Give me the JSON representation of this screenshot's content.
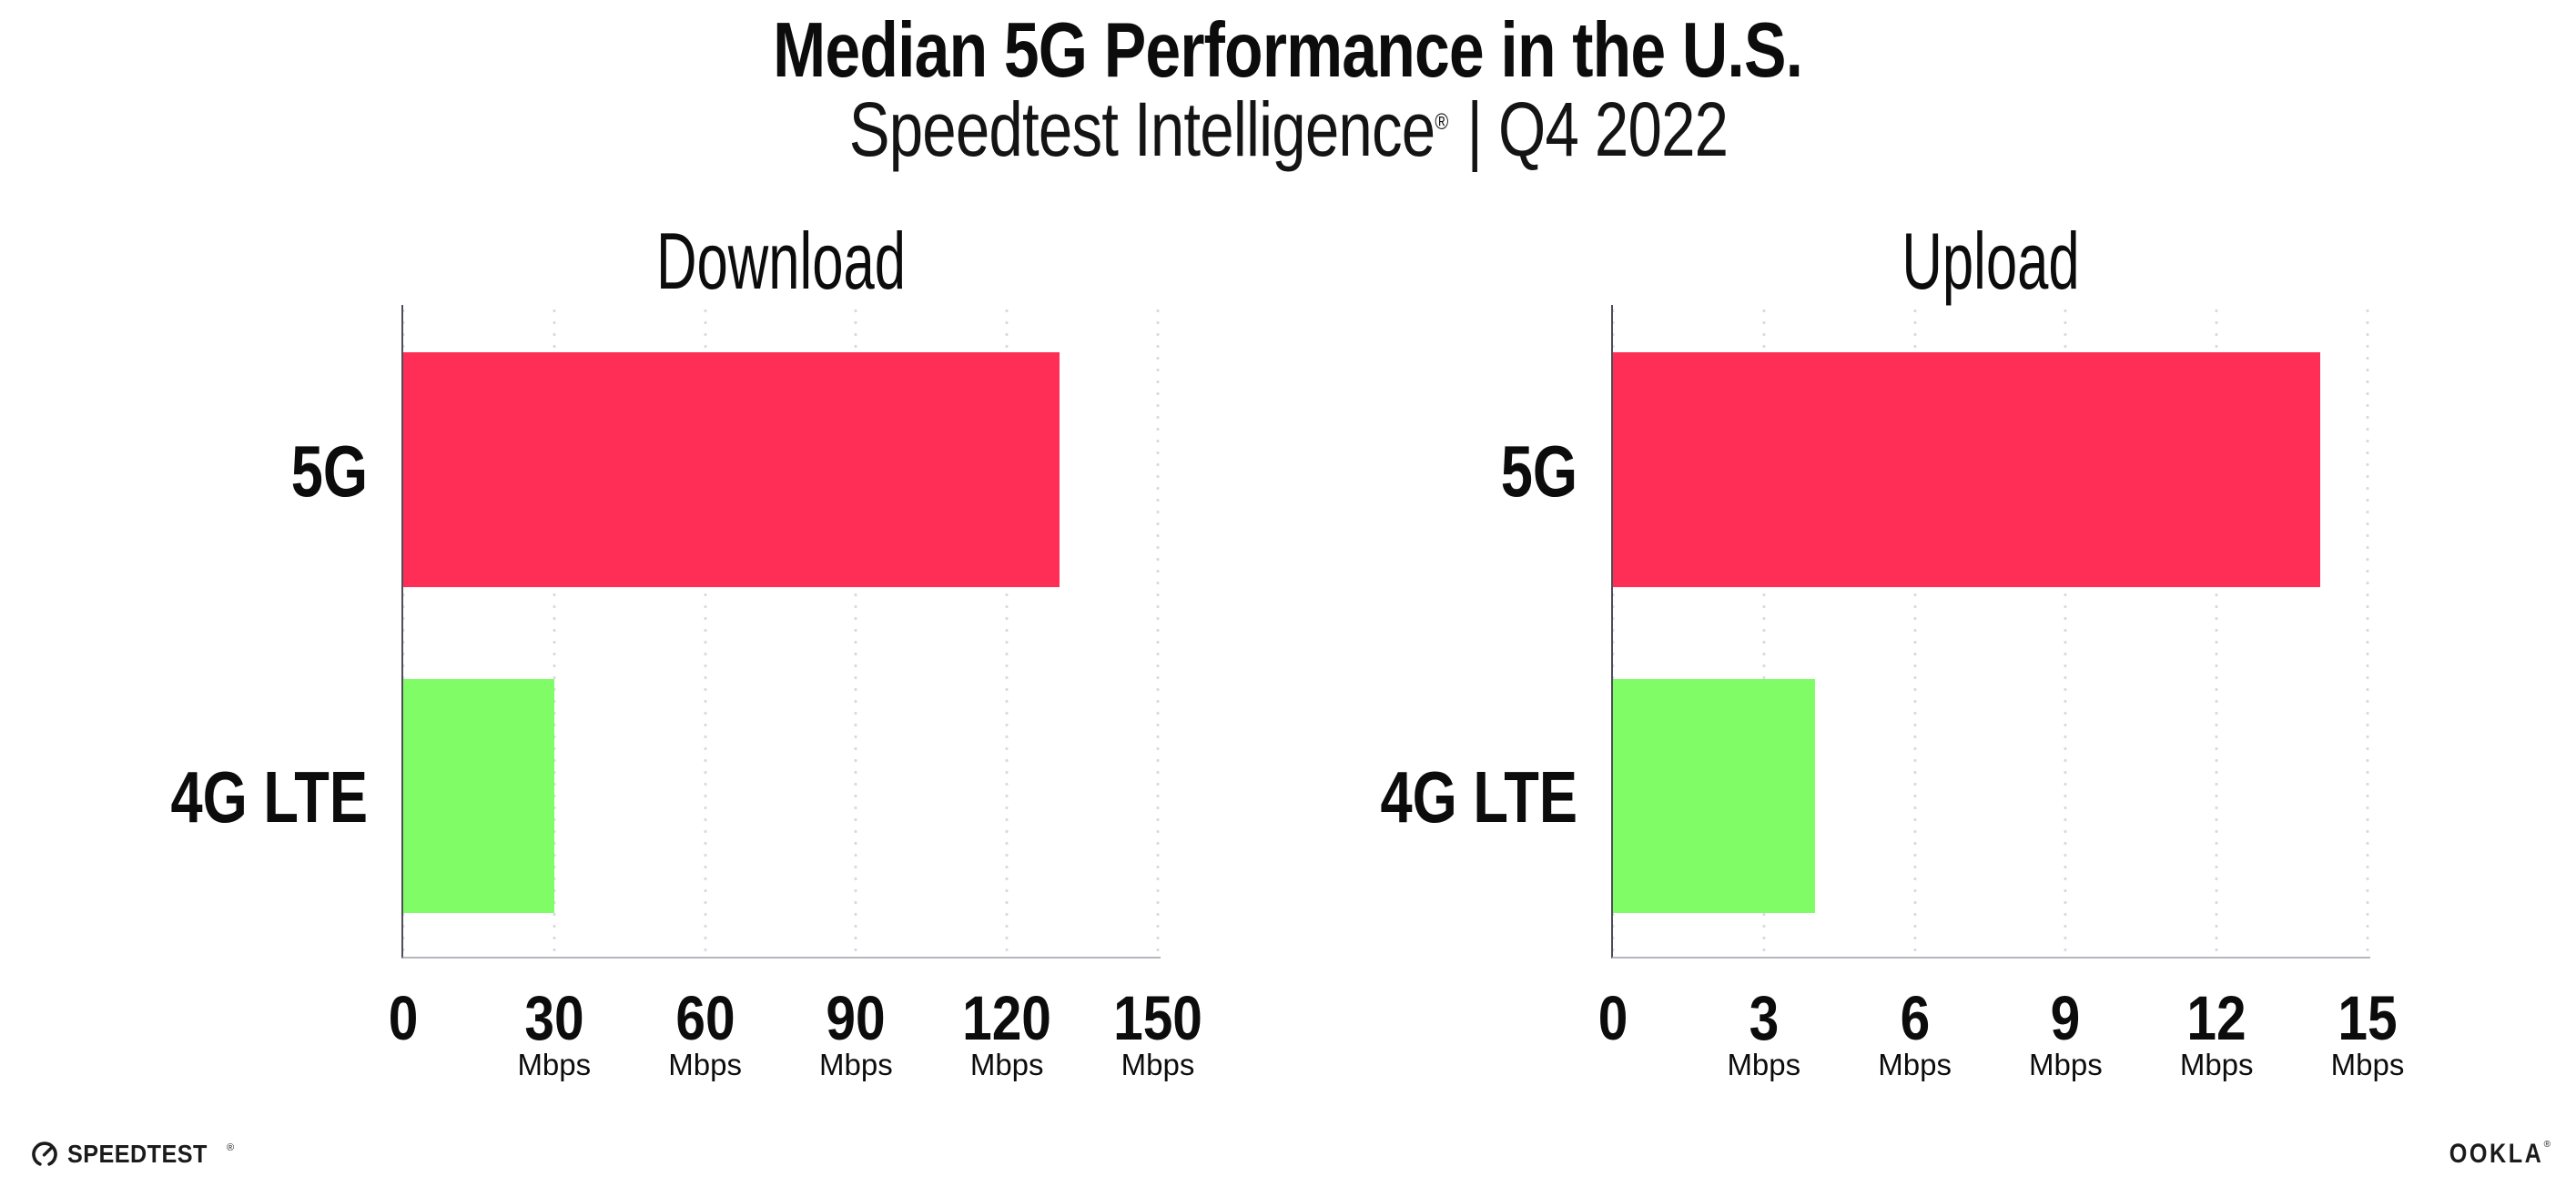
{
  "header": {
    "title": "Median 5G Performance in the U.S.",
    "subtitle_brand": "Speedtest Intelligence",
    "subtitle_mark": "®",
    "subtitle_rest": "| Q4 2022"
  },
  "chart_data": [
    {
      "type": "bar",
      "orientation": "horizontal",
      "title": "Download",
      "categories": [
        "5G",
        "4G LTE"
      ],
      "values": [
        130,
        30
      ],
      "unit": "Mbps",
      "xlim": [
        0,
        150
      ],
      "xticks": [
        0,
        30,
        60,
        90,
        120,
        150
      ],
      "tick_labels": [
        "0",
        "30",
        "60",
        "90",
        "120",
        "150"
      ],
      "colors": [
        "#fe2e57",
        "#80fd66"
      ],
      "grid": "dotted-vertical-at-ticks",
      "legend": "none"
    },
    {
      "type": "bar",
      "orientation": "horizontal",
      "title": "Upload",
      "categories": [
        "5G",
        "4G LTE"
      ],
      "values": [
        14,
        4
      ],
      "unit": "Mbps",
      "xlim": [
        0,
        15
      ],
      "xticks": [
        0,
        3,
        6,
        9,
        12,
        15
      ],
      "tick_labels": [
        "0",
        "3",
        "6",
        "9",
        "12",
        "15"
      ],
      "colors": [
        "#fe2e57",
        "#80fd66"
      ],
      "grid": "dotted-vertical-at-ticks",
      "legend": "none"
    }
  ],
  "footer": {
    "speedtest_wordmark": "SPEEDTEST",
    "speedtest_mark": "®",
    "ookla_wordmark": "OOKLA",
    "ookla_mark": "®"
  }
}
